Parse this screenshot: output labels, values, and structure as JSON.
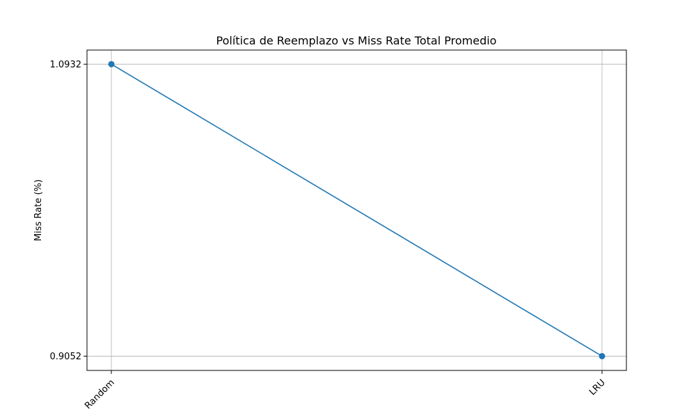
{
  "chart_data": {
    "type": "line",
    "title": "Política de Reemplazo vs Miss Rate Total Promedio",
    "xlabel": "",
    "ylabel": "Miss Rate (%)",
    "categories": [
      "Random",
      "LRU"
    ],
    "series": [
      {
        "values": [
          1.0932,
          0.9052
        ],
        "color": "#1f77b4",
        "marker": "circle"
      }
    ],
    "yticks": [
      "0.9052",
      "1.0932"
    ],
    "ylim": [
      0.896,
      1.1023
    ],
    "grid": true,
    "xtick_rotation": 45,
    "legend": "none"
  }
}
